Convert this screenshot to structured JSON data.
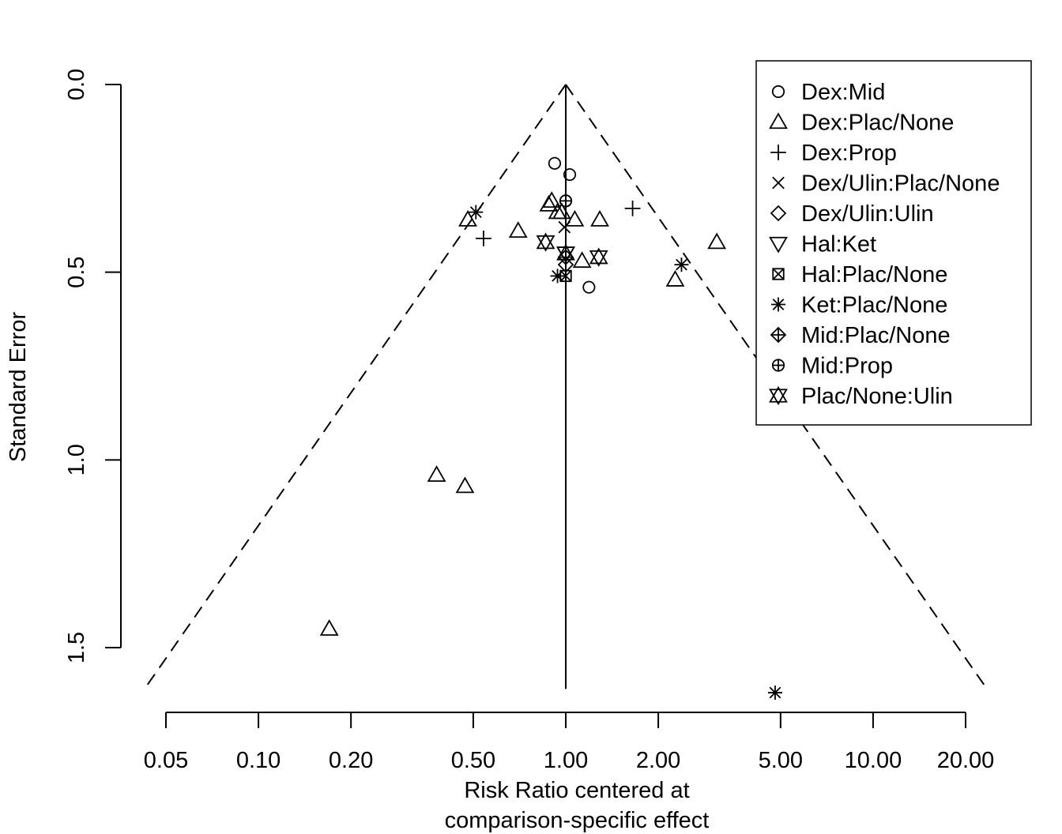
{
  "chart_data": {
    "type": "scatter",
    "title": "",
    "xlabel_lines": [
      "Risk Ratio centered at",
      "comparison-specific effect"
    ],
    "ylabel": "Standard Error",
    "x_scale": "log",
    "xlim": [
      0.044,
      22.5
    ],
    "ylim": [
      0,
      1.61
    ],
    "y_reversed": true,
    "x_ticks": [
      0.05,
      0.1,
      0.2,
      0.5,
      1,
      2,
      5,
      10,
      20
    ],
    "x_tick_labels": [
      "0.05",
      "0.10",
      "0.20",
      "0.50",
      "1.00",
      "2.00",
      "5.00",
      "10.00",
      "20.00"
    ],
    "y_ticks": [
      0,
      0.5,
      1,
      1.5
    ],
    "y_tick_labels": [
      "0.0",
      "0.5",
      "1.0",
      "1.5"
    ],
    "reference_x": 1,
    "funnel_z": 1.96,
    "legend_position": "top-right",
    "grid": false,
    "series": [
      {
        "name": "Dex:Mid",
        "symbol": "circle",
        "points": [
          [
            0.92,
            0.21
          ],
          [
            1.03,
            0.24
          ],
          [
            1.19,
            0.54
          ],
          [
            1.0,
            0.31
          ]
        ]
      },
      {
        "name": "Dex:Plac/None",
        "symbol": "triangle-up",
        "points": [
          [
            0.9,
            0.31
          ],
          [
            0.88,
            0.32
          ],
          [
            0.94,
            0.34
          ],
          [
            0.97,
            0.34
          ],
          [
            1.07,
            0.36
          ],
          [
            1.29,
            0.36
          ],
          [
            0.48,
            0.36
          ],
          [
            0.7,
            0.39
          ],
          [
            1.13,
            0.47
          ],
          [
            2.27,
            0.52
          ],
          [
            3.1,
            0.42
          ],
          [
            0.38,
            1.04
          ],
          [
            0.47,
            1.07
          ],
          [
            0.17,
            1.45
          ]
        ]
      },
      {
        "name": "Dex:Prop",
        "symbol": "plus",
        "points": [
          [
            1.65,
            0.33
          ],
          [
            0.54,
            0.41
          ]
        ]
      },
      {
        "name": "Dex/Ulin:Plac/None",
        "symbol": "cross",
        "points": [
          [
            0.99,
            0.38
          ]
        ]
      },
      {
        "name": "Dex/Ulin:Ulin",
        "symbol": "diamond",
        "points": [
          [
            1.0,
            0.48
          ]
        ]
      },
      {
        "name": "Hal:Ket",
        "symbol": "triangle-down",
        "points": [
          [
            1.0,
            0.45
          ]
        ]
      },
      {
        "name": "Hal:Plac/None",
        "symbol": "square-x",
        "points": [
          [
            1.0,
            0.51
          ]
        ]
      },
      {
        "name": "Ket:Plac/None",
        "symbol": "asterisk",
        "points": [
          [
            0.51,
            0.34
          ],
          [
            0.94,
            0.51
          ],
          [
            2.38,
            0.48
          ],
          [
            4.8,
            1.62
          ]
        ]
      },
      {
        "name": "Mid:Plac/None",
        "symbol": "diamond-plus",
        "points": [
          [
            1.0,
            0.46
          ]
        ]
      },
      {
        "name": "Mid:Prop",
        "symbol": "circle-plus",
        "points": [
          [
            1.0,
            0.31
          ]
        ]
      },
      {
        "name": "Plac/None:Ulin",
        "symbol": "star-of-david",
        "points": [
          [
            0.86,
            0.42
          ],
          [
            1.0,
            0.45
          ],
          [
            1.28,
            0.46
          ]
        ]
      }
    ]
  }
}
